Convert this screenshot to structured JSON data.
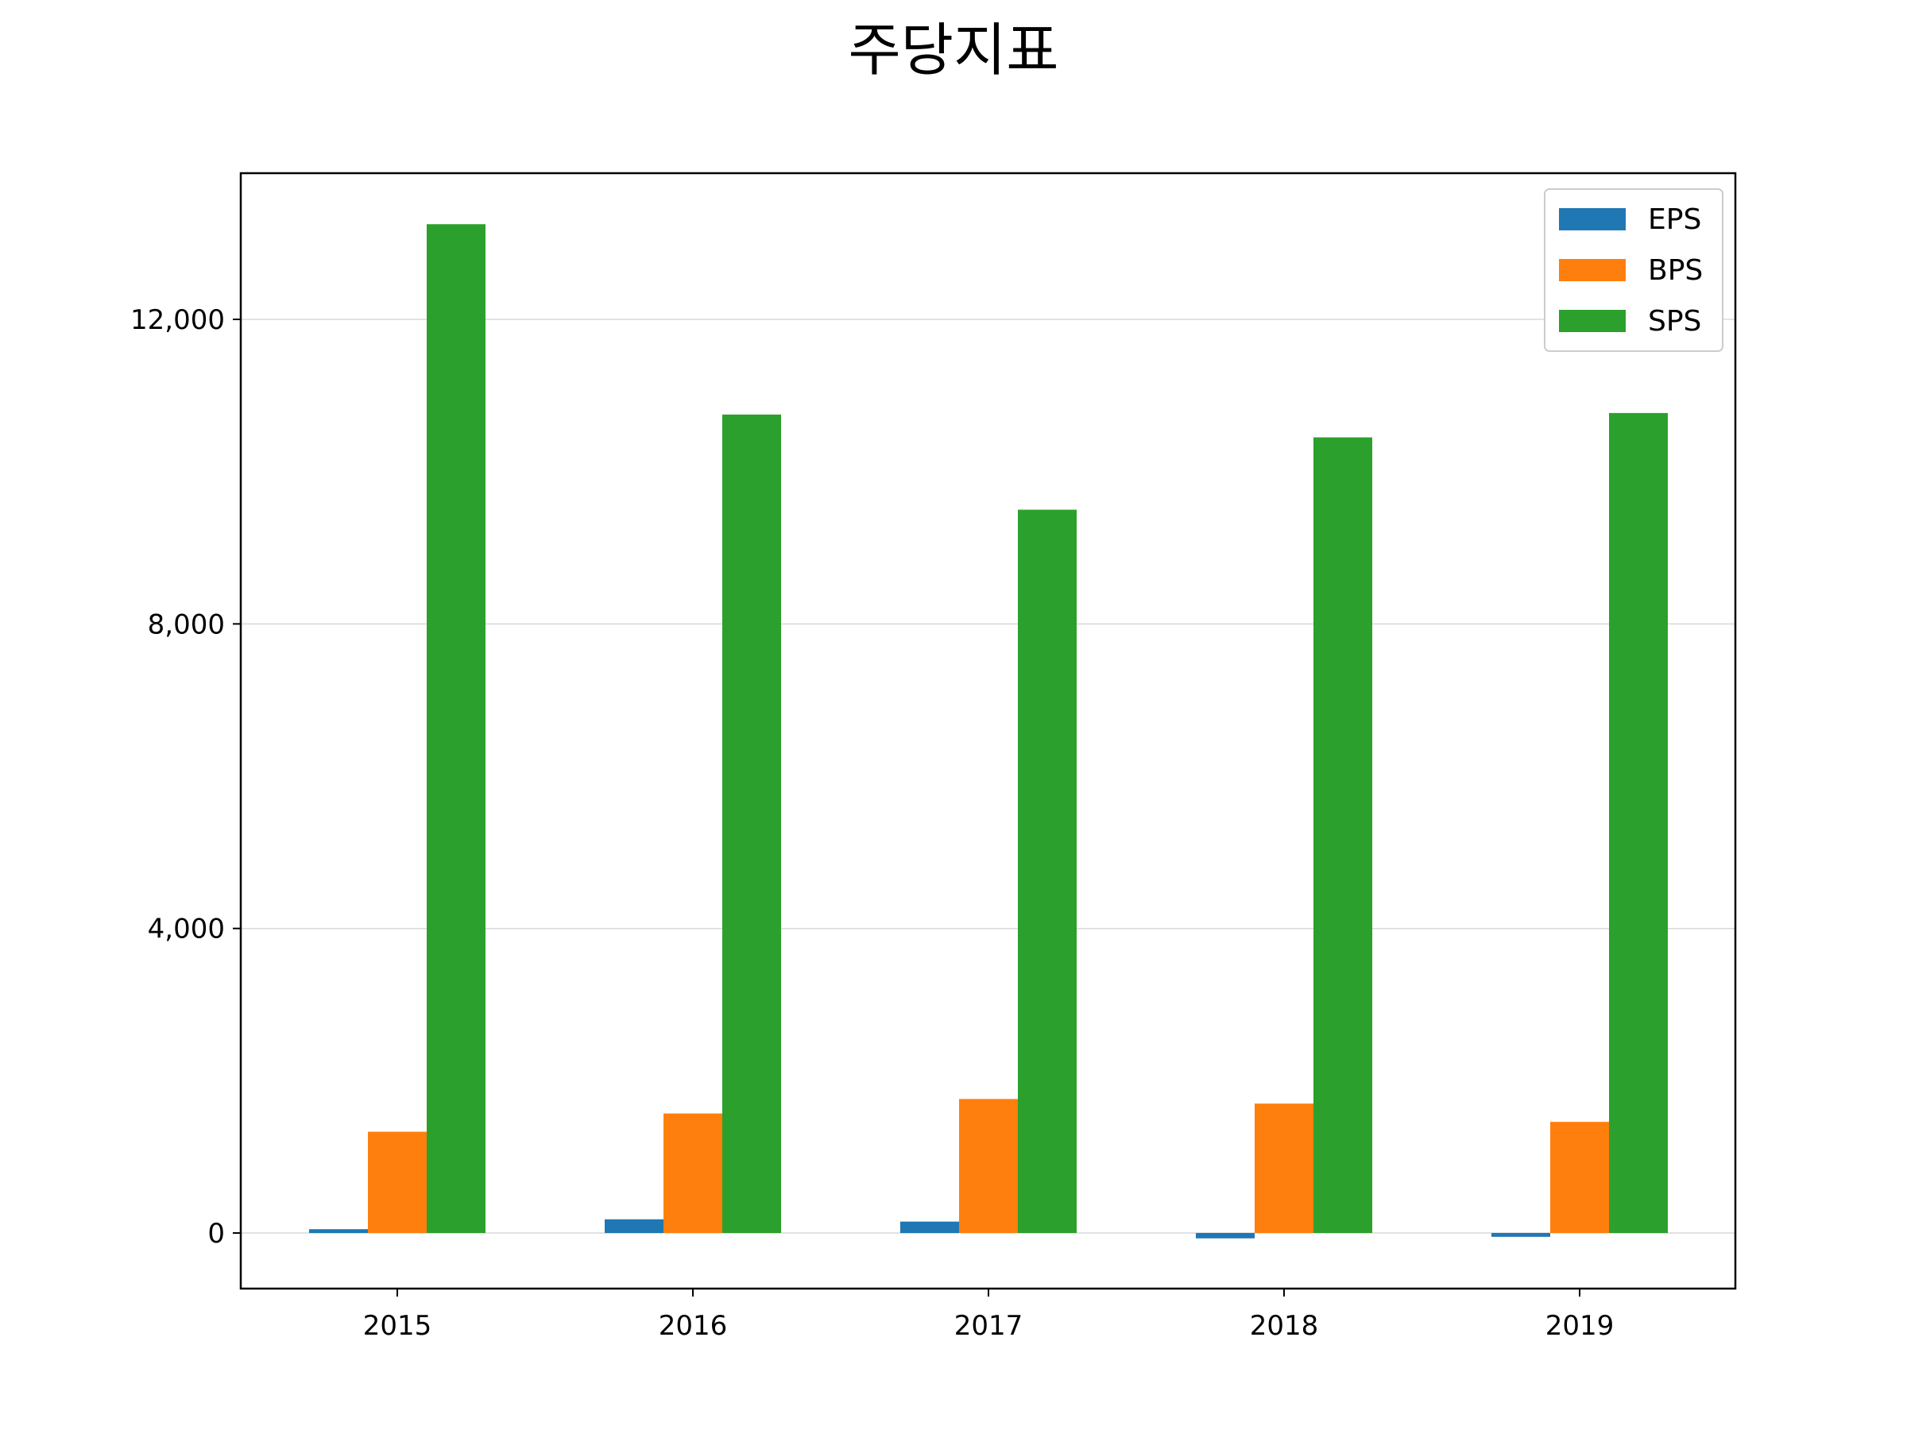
{
  "chart_data": {
    "type": "bar",
    "title": "주당지표",
    "categories": [
      "2015",
      "2016",
      "2017",
      "2018",
      "2019"
    ],
    "series": [
      {
        "name": "EPS",
        "color": "#1f77b4",
        "values": [
          50,
          180,
          150,
          -70,
          -50
        ]
      },
      {
        "name": "BPS",
        "color": "#ff7f0e",
        "values": [
          1330,
          1570,
          1760,
          1700,
          1460
        ]
      },
      {
        "name": "SPS",
        "color": "#2ca02c",
        "values": [
          13250,
          10750,
          9500,
          10450,
          10770
        ]
      }
    ],
    "y_ticks": [
      0,
      4000,
      8000,
      12000
    ],
    "y_tick_labels": [
      "0",
      "4,000",
      "8,000",
      "12,000"
    ],
    "ylim": [
      -730,
      13920
    ],
    "grid": "horizontal",
    "legend": "top-right"
  }
}
